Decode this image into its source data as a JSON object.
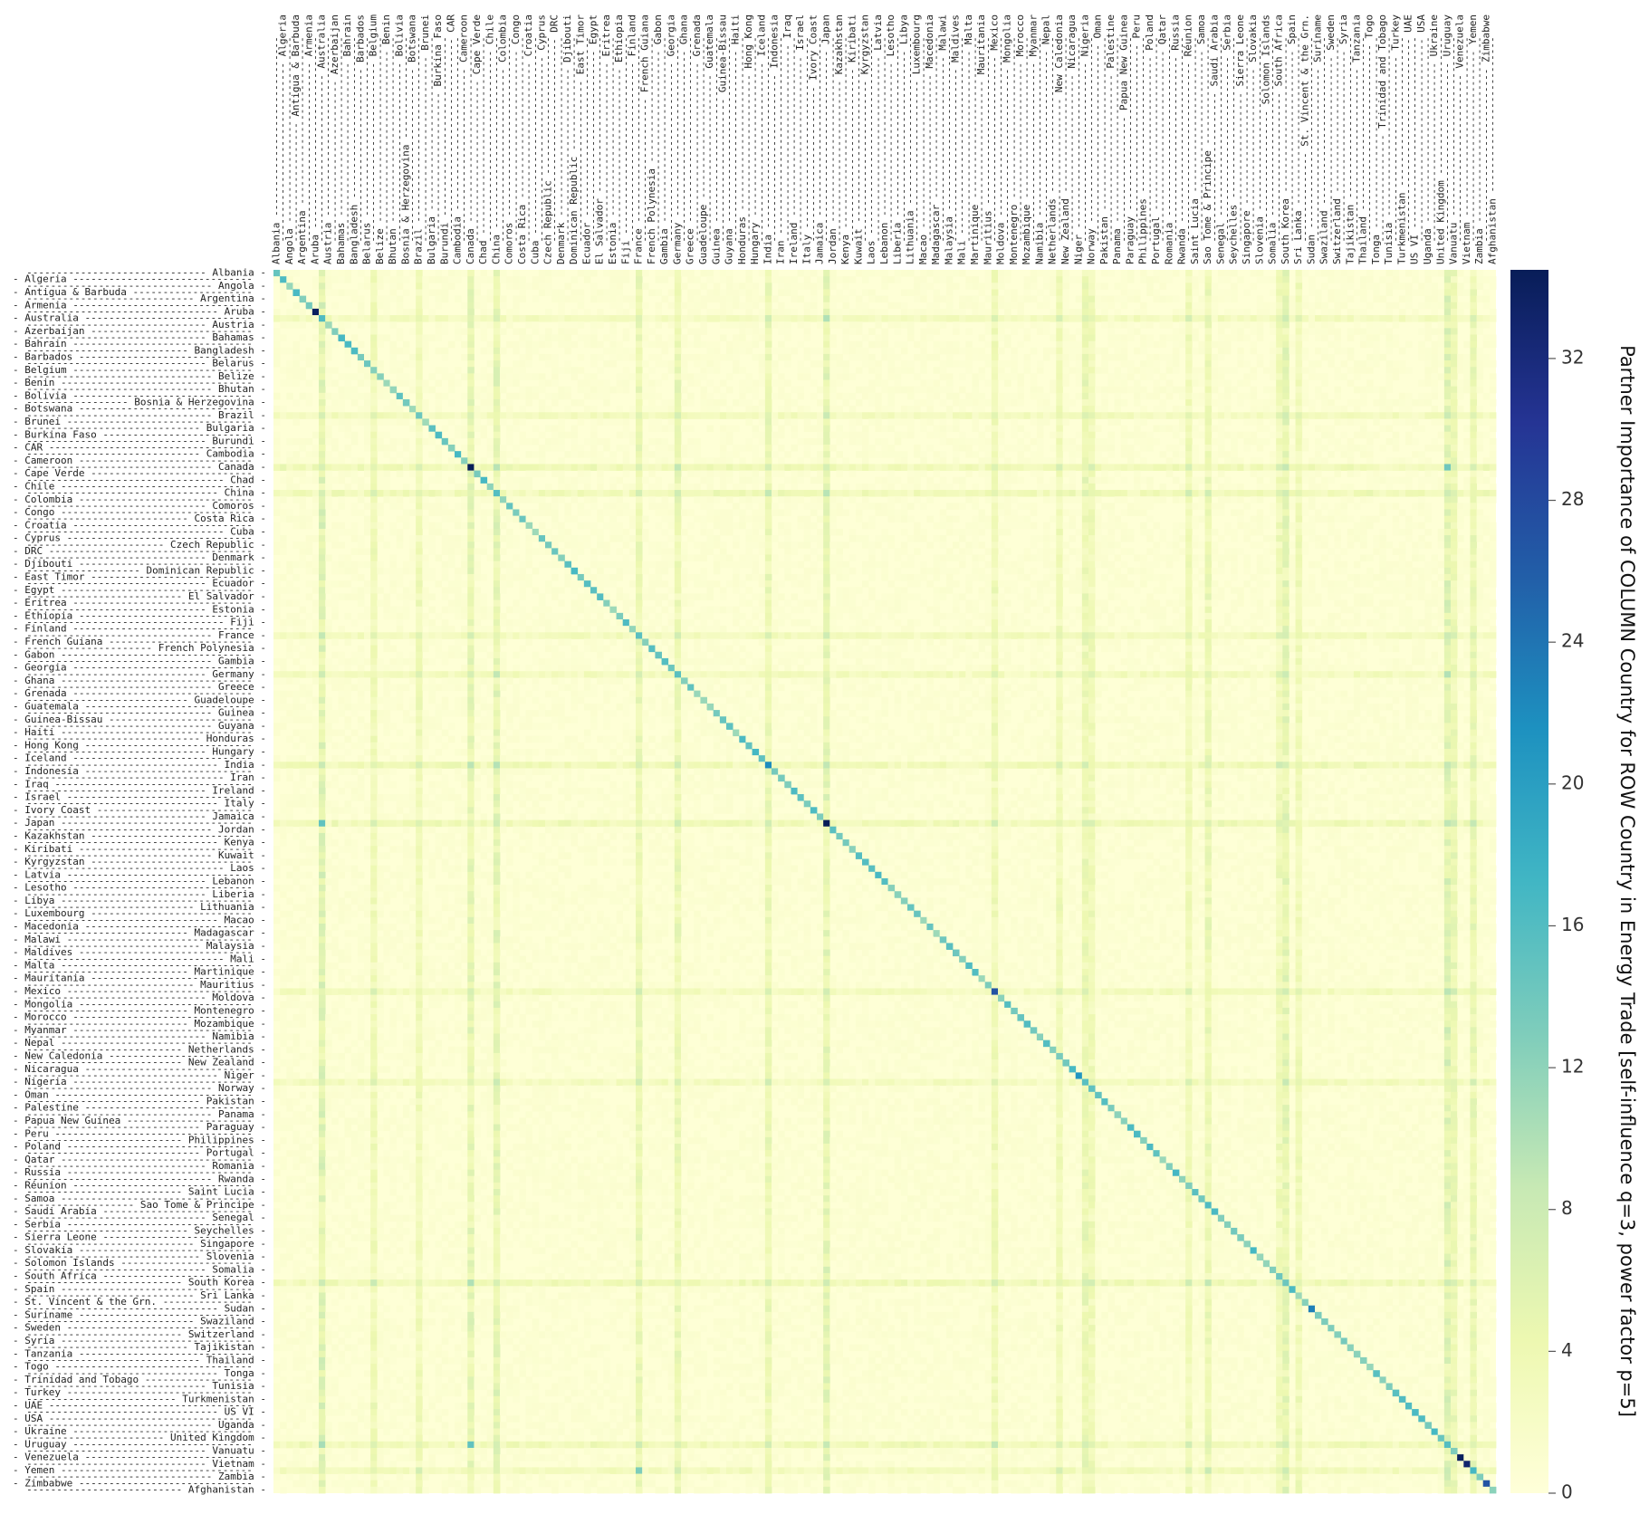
{
  "chart_data": {
    "type": "heatmap",
    "title": "",
    "xlabel": "",
    "ylabel": "",
    "colorbar": {
      "label": "Partner Importance of COLUMN Country for ROW Country in Energy Trade [self-influence q=3, power factor p=5]",
      "ticks": [
        0,
        4,
        8,
        12,
        16,
        20,
        24,
        28,
        32
      ],
      "range": [
        0,
        34.5
      ],
      "colormap": "YlGnBu"
    },
    "columns": [
      "Albania",
      "Algeria",
      "Angola",
      "Antigua & Barbuda",
      "Argentina",
      "Armenia",
      "Aruba",
      "Australia",
      "Austria",
      "Azerbaijan",
      "Bahamas",
      "Bahrain",
      "Bangladesh",
      "Barbados",
      "Belarus",
      "Belgium",
      "Belize",
      "Benin",
      "Bhutan",
      "Bolivia",
      "Bosnia & Herzegovina",
      "Botswana",
      "Brazil",
      "Brunei",
      "Bulgaria",
      "Burkina Faso",
      "Burundi",
      "CAR",
      "Cambodia",
      "Cameroon",
      "Canada",
      "Cape Verde",
      "Chad",
      "Chile",
      "China",
      "Colombia",
      "Comoros",
      "Congo",
      "Costa Rica",
      "Croatia",
      "Cuba",
      "Cyprus",
      "Czech Republic",
      "DRC",
      "Denmark",
      "Djibouti",
      "Dominican Republic",
      "East Timor",
      "Ecuador",
      "Egypt",
      "El Salvador",
      "Eritrea",
      "Estonia",
      "Ethiopia",
      "Fiji",
      "Finland",
      "France",
      "French Guiana",
      "French Polynesia",
      "Gabon",
      "Gambia",
      "Georgia",
      "Germany",
      "Ghana",
      "Greece",
      "Grenada",
      "Guadeloupe",
      "Guatemala",
      "Guinea",
      "Guinea-Bissau",
      "Guyana",
      "Haiti",
      "Honduras",
      "Hong Kong",
      "Hungary",
      "Iceland",
      "India",
      "Indonesia",
      "Iran",
      "Iraq",
      "Ireland",
      "Israel",
      "Italy",
      "Ivory Coast",
      "Jamaica",
      "Japan",
      "Jordan",
      "Kazakhstan",
      "Kenya",
      "Kiribati",
      "Kuwait",
      "Kyrgyzstan",
      "Laos",
      "Latvia",
      "Lebanon",
      "Lesotho",
      "Liberia",
      "Libya",
      "Lithuania",
      "Luxembourg",
      "Macao",
      "Macedonia",
      "Madagascar",
      "Malawi",
      "Malaysia",
      "Maldives",
      "Mali",
      "Malta",
      "Martinique",
      "Mauritania",
      "Mauritius",
      "Mexico",
      "Moldova",
      "Mongolia",
      "Montenegro",
      "Morocco",
      "Mozambique",
      "Myanmar",
      "Namibia",
      "Nepal",
      "Netherlands",
      "New Caledonia",
      "New Zealand",
      "Nicaragua",
      "Niger",
      "Nigeria",
      "Norway",
      "Oman",
      "Pakistan",
      "Palestine",
      "Panama",
      "Papua New Guinea",
      "Paraguay",
      "Peru",
      "Philippines",
      "Poland",
      "Portugal",
      "Qatar",
      "Romania",
      "Russia",
      "Rwanda",
      "Réunion",
      "Saint Lucia",
      "Samoa",
      "Sao Tome & Principe",
      "Saudi Arabia",
      "Senegal",
      "Serbia",
      "Seychelles",
      "Sierra Leone",
      "Singapore",
      "Slovakia",
      "Slovenia",
      "Solomon Islands",
      "Somalia",
      "South Africa",
      "South Korea",
      "Spain",
      "Sri Lanka",
      "St. Vincent & the Grn.",
      "Sudan",
      "Suriname",
      "Swaziland",
      "Sweden",
      "Switzerland",
      "Syria",
      "Tajikistan",
      "Tanzania",
      "Thailand",
      "Togo",
      "Tonga",
      "Trinidad and Tobago",
      "Tunisia",
      "Turkey",
      "Turkmenistan",
      "UAE",
      "US VI",
      "USA",
      "Uganda",
      "Ukraine",
      "United Kingdom",
      "Uruguay",
      "Vanuatu",
      "Venezuela",
      "Vietnam",
      "Yemen",
      "Zambia",
      "Zimbabwe",
      "Afghanistan"
    ],
    "diagonal_overrides": {
      "6": 34,
      "30": 34.5,
      "76": 22,
      "85": 34.5,
      "111": 27,
      "124": 21,
      "160": 23,
      "183": 34,
      "184": 33,
      "187": 27
    },
    "hub_columns": {
      "7": 7,
      "15": 4,
      "22": 4,
      "30": 6,
      "34": 6,
      "56": 5,
      "62": 5,
      "76": 5,
      "85": 6,
      "111": 4,
      "121": 4,
      "125": 5,
      "126": 4,
      "141": 4,
      "144": 5,
      "155": 4,
      "156": 6,
      "158": 4,
      "181": 7,
      "182": 5,
      "185": 5
    },
    "hub_rows": {
      "7": 3,
      "22": 3,
      "30": 4,
      "34": 4,
      "56": 3,
      "62": 3,
      "76": 4,
      "85": 4,
      "111": 3,
      "125": 3,
      "156": 4,
      "181": 4,
      "185": 3
    },
    "hotspots": [
      {
        "row": 85,
        "col": 7,
        "value": 15
      },
      {
        "row": 7,
        "col": 85,
        "value": 10
      },
      {
        "row": 181,
        "col": 30,
        "value": 15
      },
      {
        "row": 30,
        "col": 181,
        "value": 14
      },
      {
        "row": 185,
        "col": 56,
        "value": 13
      },
      {
        "row": 181,
        "col": 111,
        "value": 9
      }
    ]
  }
}
